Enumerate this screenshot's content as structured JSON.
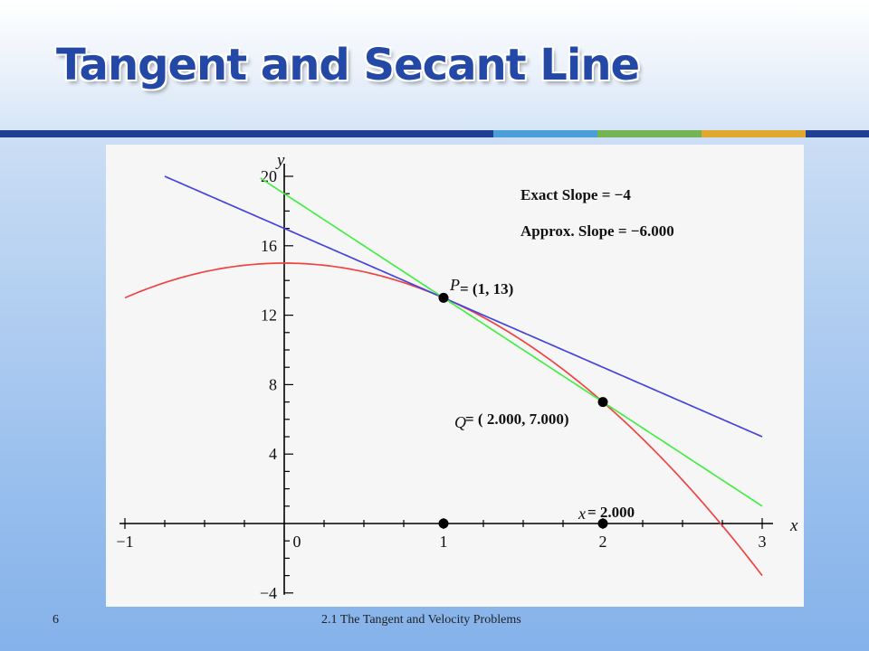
{
  "slide": {
    "title": "Tangent and Secant Line",
    "number": "6",
    "footer": "2.1 The Tangent and Velocity Problems"
  },
  "colors": {
    "title_text": "#2348a6",
    "accent_bar": [
      "#1f3f92",
      "#4a9fd8",
      "#74b452",
      "#e0a82e",
      "#1f3f92"
    ],
    "curve": "#ee4444",
    "tangent": "#4444dd",
    "secant": "#44ee44",
    "axis": "#000000"
  },
  "chart_data": {
    "type": "line",
    "xlabel": "x",
    "ylabel": "y",
    "xlim": [
      -1,
      3
    ],
    "ylim": [
      -4,
      20
    ],
    "x_ticks": [
      "−1",
      "0",
      "1",
      "2",
      "3"
    ],
    "y_ticks": [
      "−4",
      "4",
      "8",
      "12",
      "16",
      "20"
    ],
    "series": [
      {
        "role": "curve",
        "equation": "y = 15 - 2x^2",
        "x_range": [
          -1,
          3
        ],
        "color": "#ee4444"
      },
      {
        "role": "tangent",
        "equation": "y = 17 - 4x",
        "x_range": [
          -0.75,
          3
        ],
        "color": "#4444dd"
      },
      {
        "role": "secant",
        "equation": "y = 19 - 6x",
        "x_range": [
          -0.15,
          3
        ],
        "color": "#44ee44"
      }
    ],
    "points": [
      {
        "x": 1,
        "y": 13
      },
      {
        "x": 2,
        "y": 7
      },
      {
        "x": 1,
        "y": 0
      },
      {
        "x": 2,
        "y": 0
      }
    ],
    "annotations": {
      "exact_slope": "Exact Slope = −4",
      "approx_slope": "Approx. Slope = −6.000",
      "p_var": "P",
      "p_label": " = (1, 13)",
      "q_var": "Q",
      "q_label": " = ( 2.000,   7.000)",
      "x_var": "x",
      "x_label": "= 2.000"
    }
  }
}
